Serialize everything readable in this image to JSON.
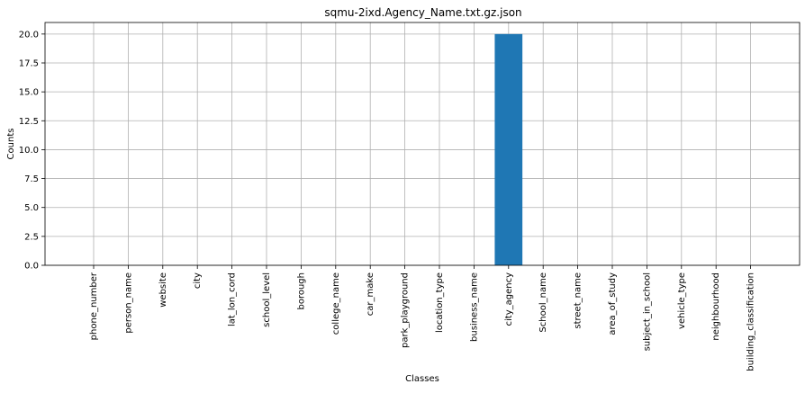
{
  "chart_data": {
    "type": "bar",
    "title": "sqmu-2ixd.Agency_Name.txt.gz.json",
    "xlabel": "Classes",
    "ylabel": "Counts",
    "categories": [
      "phone_number",
      "person_name",
      "website",
      "city",
      "lat_lon_cord",
      "school_level",
      "borough",
      "college_name",
      "car_make",
      "park_playground",
      "location_type",
      "business_name",
      "city_agency",
      "School_name",
      "street_name",
      "area_of_study",
      "subject_in_school",
      "vehicle_type",
      "neighbourhood",
      "building_classification"
    ],
    "values": [
      0,
      0,
      0,
      0,
      0,
      0,
      0,
      0,
      0,
      0,
      0,
      0,
      20,
      0,
      0,
      0,
      0,
      0,
      0,
      0
    ],
    "ylim": [
      0,
      21
    ],
    "yticks": [
      "0.0",
      "2.5",
      "5.0",
      "7.5",
      "10.0",
      "12.5",
      "15.0",
      "17.5",
      "20.0"
    ],
    "grid": true,
    "bar_color": "#1f77b4"
  }
}
